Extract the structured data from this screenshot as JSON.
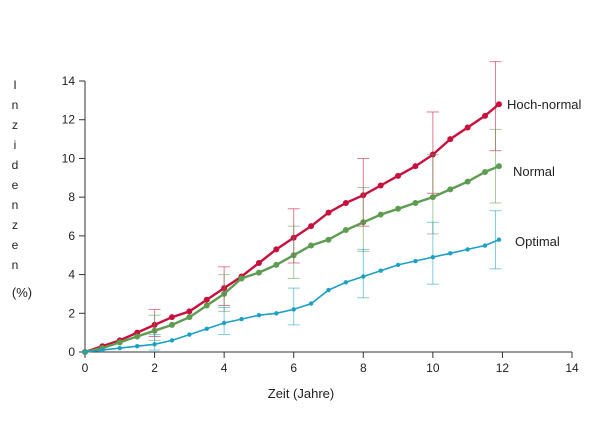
{
  "chart_data": {
    "type": "line",
    "xlabel": "Zeit (Jahre)",
    "ylabel": "Inzidenzen",
    "yunit": "(%)",
    "xlim": [
      0,
      14
    ],
    "ylim": [
      0,
      14
    ],
    "x_ticks": [
      "0",
      "2",
      "4",
      "6",
      "8",
      "10",
      "12",
      "14"
    ],
    "y_ticks": [
      "0",
      "2",
      "4",
      "6",
      "8",
      "10",
      "12",
      "14"
    ],
    "grid": false,
    "legend": "inline-right",
    "series": [
      {
        "name": "Hoch-normal",
        "color": "#c8103e",
        "points": [
          [
            0,
            0
          ],
          [
            0.5,
            0.3
          ],
          [
            1,
            0.6
          ],
          [
            1.5,
            1.0
          ],
          [
            2,
            1.4
          ],
          [
            2.5,
            1.8
          ],
          [
            3,
            2.1
          ],
          [
            3.5,
            2.7
          ],
          [
            4,
            3.3
          ],
          [
            4.5,
            3.9
          ],
          [
            5,
            4.6
          ],
          [
            5.5,
            5.3
          ],
          [
            6,
            5.9
          ],
          [
            6.5,
            6.5
          ],
          [
            7,
            7.2
          ],
          [
            7.5,
            7.7
          ],
          [
            8,
            8.1
          ],
          [
            8.5,
            8.6
          ],
          [
            9,
            9.1
          ],
          [
            9.5,
            9.6
          ],
          [
            10,
            10.2
          ],
          [
            10.5,
            11.0
          ],
          [
            11,
            11.6
          ],
          [
            11.5,
            12.2
          ],
          [
            11.9,
            12.8
          ]
        ],
        "error_bars": [
          {
            "x": 2,
            "y": 1.4,
            "low": 0.8,
            "high": 2.2
          },
          {
            "x": 4,
            "y": 3.3,
            "low": 2.4,
            "high": 4.4
          },
          {
            "x": 6,
            "y": 5.9,
            "low": 4.6,
            "high": 7.4
          },
          {
            "x": 8,
            "y": 8.1,
            "low": 6.5,
            "high": 10.0
          },
          {
            "x": 10,
            "y": 10.2,
            "low": 8.2,
            "high": 12.4
          },
          {
            "x": 11.8,
            "y": 12.7,
            "low": 10.4,
            "high": 15.0
          }
        ]
      },
      {
        "name": "Normal",
        "color": "#5e9c52",
        "points": [
          [
            0,
            0
          ],
          [
            0.5,
            0.2
          ],
          [
            1,
            0.5
          ],
          [
            1.5,
            0.8
          ],
          [
            2,
            1.1
          ],
          [
            2.5,
            1.4
          ],
          [
            3,
            1.8
          ],
          [
            3.5,
            2.4
          ],
          [
            4,
            3.0
          ],
          [
            4.5,
            3.8
          ],
          [
            5,
            4.1
          ],
          [
            5.5,
            4.5
          ],
          [
            6,
            5.0
          ],
          [
            6.5,
            5.5
          ],
          [
            7,
            5.8
          ],
          [
            7.5,
            6.3
          ],
          [
            8,
            6.7
          ],
          [
            8.5,
            7.1
          ],
          [
            9,
            7.4
          ],
          [
            9.5,
            7.7
          ],
          [
            10,
            8.0
          ],
          [
            10.5,
            8.4
          ],
          [
            11,
            8.8
          ],
          [
            11.5,
            9.3
          ],
          [
            11.9,
            9.6
          ]
        ],
        "error_bars": [
          {
            "x": 2,
            "y": 1.1,
            "low": 0.6,
            "high": 1.9
          },
          {
            "x": 4,
            "y": 3.0,
            "low": 2.1,
            "high": 4.0
          },
          {
            "x": 6,
            "y": 5.0,
            "low": 3.8,
            "high": 6.5
          },
          {
            "x": 8,
            "y": 6.7,
            "low": 5.2,
            "high": 8.5
          },
          {
            "x": 10,
            "y": 8.0,
            "low": 6.1,
            "high": 10.2
          },
          {
            "x": 11.8,
            "y": 9.6,
            "low": 7.7,
            "high": 11.5
          }
        ]
      },
      {
        "name": "Optimal",
        "color": "#1e9fc4",
        "points": [
          [
            0,
            0
          ],
          [
            0.5,
            0.1
          ],
          [
            1,
            0.2
          ],
          [
            1.5,
            0.3
          ],
          [
            2,
            0.4
          ],
          [
            2.5,
            0.6
          ],
          [
            3,
            0.9
          ],
          [
            3.5,
            1.2
          ],
          [
            4,
            1.5
          ],
          [
            4.5,
            1.7
          ],
          [
            5,
            1.9
          ],
          [
            5.5,
            2.0
          ],
          [
            6,
            2.2
          ],
          [
            6.5,
            2.5
          ],
          [
            7,
            3.2
          ],
          [
            7.5,
            3.6
          ],
          [
            8,
            3.9
          ],
          [
            8.5,
            4.2
          ],
          [
            9,
            4.5
          ],
          [
            9.5,
            4.7
          ],
          [
            10,
            4.9
          ],
          [
            10.5,
            5.1
          ],
          [
            11,
            5.3
          ],
          [
            11.5,
            5.5
          ],
          [
            11.9,
            5.8
          ]
        ],
        "error_bars": [
          {
            "x": 2,
            "y": 0.4,
            "low": 0.1,
            "high": 0.9
          },
          {
            "x": 4,
            "y": 1.5,
            "low": 0.9,
            "high": 2.3
          },
          {
            "x": 6,
            "y": 2.2,
            "low": 1.4,
            "high": 3.3
          },
          {
            "x": 8,
            "y": 3.9,
            "low": 2.8,
            "high": 5.3
          },
          {
            "x": 10,
            "y": 4.9,
            "low": 3.5,
            "high": 6.7
          },
          {
            "x": 11.8,
            "y": 5.8,
            "low": 4.3,
            "high": 7.3
          }
        ]
      }
    ]
  }
}
